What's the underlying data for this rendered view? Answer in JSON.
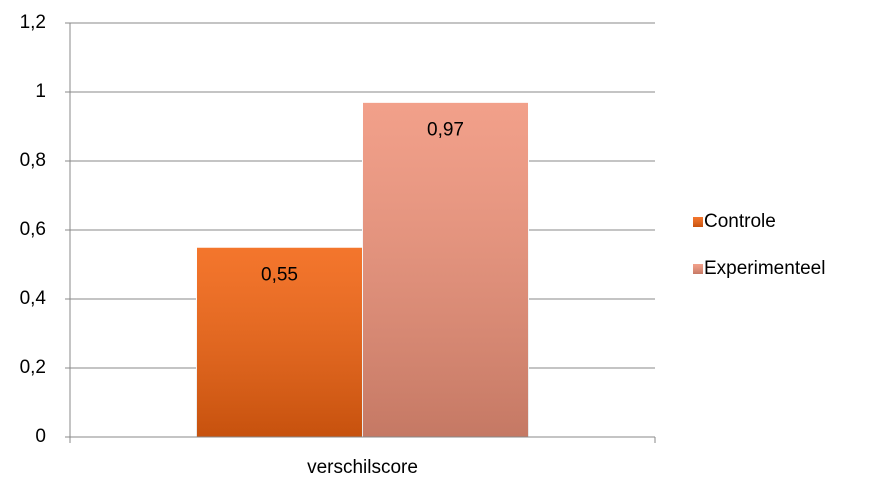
{
  "chart_data": {
    "type": "bar",
    "categories": [
      "verschilscore"
    ],
    "series": [
      {
        "name": "Controle",
        "color": "#f26310",
        "values": [
          0.55
        ],
        "value_labels": [
          "0,55"
        ]
      },
      {
        "name": "Experimenteel",
        "color": "#f0937a",
        "values": [
          0.97
        ],
        "value_labels": [
          "0,97"
        ]
      }
    ],
    "ylim": [
      0,
      1.2
    ],
    "yticks": [
      0,
      {
        "value": 0.2,
        "label": "0,2"
      },
      {
        "value": 0.4,
        "label": "0,4"
      },
      {
        "value": 0.6,
        "label": "0,6"
      },
      {
        "value": 0.8,
        "label": "0,8"
      },
      1,
      {
        "value": 1.2,
        "label": "1,2"
      }
    ],
    "grid": true,
    "legend": "right"
  }
}
